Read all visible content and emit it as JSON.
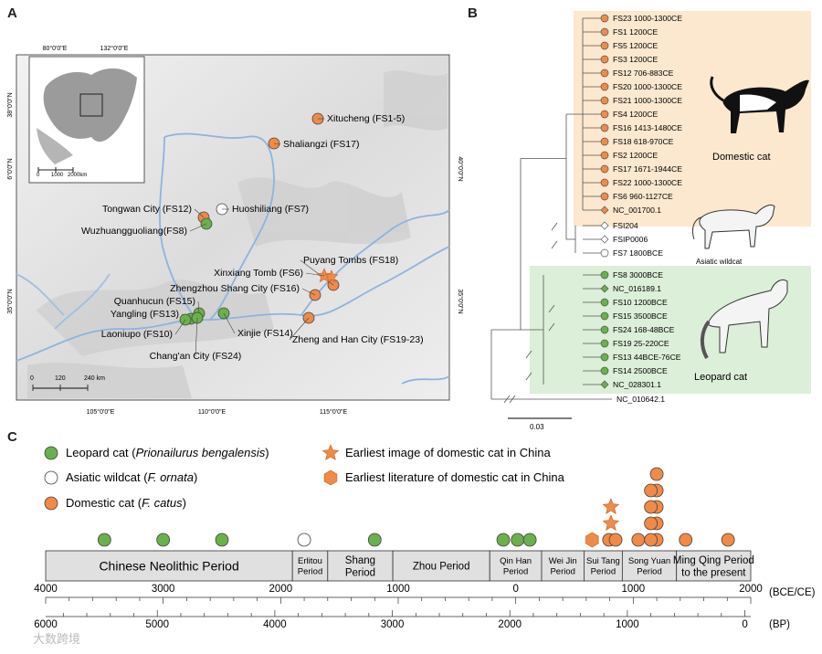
{
  "panel_labels": {
    "a": "A",
    "b": "B",
    "c": "C"
  },
  "colors": {
    "leopard": "#6ab04c",
    "domestic": "#f08a46",
    "wild_fill": "#ffffff",
    "domestic_box": "#fbe8cf",
    "leopard_box": "#dcefd8",
    "river": "#7aa6d6"
  },
  "map": {
    "top_ticks": [
      "80°0'0\"E",
      "132°0'0\"E"
    ],
    "bottom_ticks": [
      "105°0'0\"E",
      "110°0'0\"E",
      "115°0'0\"E"
    ],
    "left_ticks": [
      "38°0'0\"N",
      "6°0'0\"N",
      "35°0'0\"N"
    ],
    "right_ticks": [
      "40°0'0\"N",
      "35°0'0\"N"
    ],
    "inset_scale": [
      "0",
      "1000",
      "2000km"
    ],
    "scale": [
      "0",
      "120",
      "240 km"
    ],
    "sites": [
      {
        "label": "Xitucheng (FS1-5)",
        "type": "domestic"
      },
      {
        "label": "Shaliangzi (FS17)",
        "type": "domestic"
      },
      {
        "label": "Tongwan City (FS12)",
        "type": "domestic"
      },
      {
        "label": "Huoshiliang (FS7)",
        "type": "wild"
      },
      {
        "label": "Wuzhuangguoliang(FS8)",
        "type": "leopard"
      },
      {
        "label": "Puyang Tombs (FS18)",
        "type": "domestic"
      },
      {
        "label": "Xinxiang Tomb (FS6)",
        "type": "image"
      },
      {
        "label": "Zhengzhou Shang City (FS16)",
        "type": "domestic"
      },
      {
        "label": "Quanhucun (FS15)",
        "type": "leopard"
      },
      {
        "label": "Yangling (FS13)",
        "type": "leopard"
      },
      {
        "label": "Laoniupo (FS10)",
        "type": "leopard"
      },
      {
        "label": "Xinjie (FS14)",
        "type": "leopard"
      },
      {
        "label": "Chang'an City (FS24)",
        "type": "leopard"
      },
      {
        "label": "Zheng and Han City (FS19-23)",
        "type": "domestic"
      }
    ]
  },
  "tree": {
    "domestic": [
      {
        "label": "FS23 1000-1300CE",
        "shape": "circle"
      },
      {
        "label": "FS1 1200CE",
        "shape": "circle"
      },
      {
        "label": "FS5 1200CE",
        "shape": "circle"
      },
      {
        "label": "FS3 1200CE",
        "shape": "circle"
      },
      {
        "label": "FS12 706-883CE",
        "shape": "circle"
      },
      {
        "label": "FS20 1000-1300CE",
        "shape": "circle"
      },
      {
        "label": "FS21 1000-1300CE",
        "shape": "circle"
      },
      {
        "label": "FS4 1200CE",
        "shape": "circle"
      },
      {
        "label": "FS16 1413-1480CE",
        "shape": "circle"
      },
      {
        "label": "FS18 618-970CE",
        "shape": "circle"
      },
      {
        "label": "FS2 1200CE",
        "shape": "circle"
      },
      {
        "label": "FS17 1671-1944CE",
        "shape": "circle"
      },
      {
        "label": "FS22 1000-1300CE",
        "shape": "circle"
      },
      {
        "label": "FS6 960-1127CE",
        "shape": "circle"
      },
      {
        "label": "NC_001700.1",
        "shape": "diamond"
      }
    ],
    "wild": [
      {
        "label": "FSI204",
        "shape": "diamond"
      },
      {
        "label": "FSIP0006",
        "shape": "diamond"
      },
      {
        "label": "FS7 1800BCE",
        "shape": "circle"
      }
    ],
    "leopard": [
      {
        "label": "FS8 3000BCE",
        "shape": "circle"
      },
      {
        "label": "NC_016189.1",
        "shape": "diamond"
      },
      {
        "label": "FS10 1200BCE",
        "shape": "circle"
      },
      {
        "label": "FS15 3500BCE",
        "shape": "circle"
      },
      {
        "label": "FS24 168-48BCE",
        "shape": "circle"
      },
      {
        "label": "FS19 25-220CE",
        "shape": "circle"
      },
      {
        "label": "FS13 44BCE-76CE",
        "shape": "circle"
      },
      {
        "label": "FS14 2500BCE",
        "shape": "circle"
      },
      {
        "label": "NC_028301.1",
        "shape": "diamond"
      }
    ],
    "outgroup": "NC_010642.1",
    "scale_bar": "0.03",
    "clade_labels": {
      "domestic": "Domestic cat",
      "wild": "Asiatic wildcat",
      "leopard": "Leopard cat"
    }
  },
  "timeline": {
    "legend": {
      "leopard": {
        "common": "Leopard cat (",
        "latin": "Prionailurus bengalensis",
        "close": ")"
      },
      "wild": {
        "common": "Asiatic wildcat (",
        "latin": "F. ornata",
        "close": ")"
      },
      "domestic": {
        "common": "Domestic cat (",
        "latin": "F. catus",
        "close": ")"
      },
      "image": "Earliest image of domestic cat in China",
      "literature": "Earliest literature of domestic cat in China"
    },
    "periods": [
      {
        "name": "Chinese Neolithic Period",
        "lines": [
          "Chinese Neolithic Period"
        ],
        "start": -4000,
        "end": -1900,
        "big": true
      },
      {
        "name": "Erlitou Period",
        "lines": [
          "Erlitou",
          "Period"
        ],
        "start": -1900,
        "end": -1600
      },
      {
        "name": "Shang Period",
        "lines": [
          "Shang",
          "Period"
        ],
        "start": -1600,
        "end": -1046
      },
      {
        "name": "Zhou Period",
        "lines": [
          "Zhou Period"
        ],
        "start": -1046,
        "end": -221
      },
      {
        "name": "Qin Han Period",
        "lines": [
          "Qin Han",
          "Period"
        ],
        "start": -221,
        "end": 220
      },
      {
        "name": "Wei Jin Period",
        "lines": [
          "Wei Jin",
          "Period"
        ],
        "start": 220,
        "end": 581
      },
      {
        "name": "Sui Tang Period",
        "lines": [
          "Sui Tang",
          "Period"
        ],
        "start": 581,
        "end": 907
      },
      {
        "name": "Song Yuan Period",
        "lines": [
          "Song Yuan",
          "Period"
        ],
        "start": 907,
        "end": 1368
      },
      {
        "name": "Ming Qing Period to the present",
        "lines": [
          "Ming Qing Period",
          "to the present"
        ],
        "start": 1368,
        "end": 2000
      }
    ],
    "axis_top": {
      "ticks": [
        -4000,
        -3000,
        -2000,
        -1000,
        0,
        1000,
        2000
      ],
      "labels": [
        "4000",
        "3000",
        "2000",
        "1000",
        "0",
        "1000",
        "2000"
      ],
      "unit": "(BCE/CE)"
    },
    "axis_bottom": {
      "ticks": [
        6000,
        5000,
        4000,
        3000,
        2000,
        1000,
        0
      ],
      "labels": [
        "6000",
        "5000",
        "4000",
        "3000",
        "2000",
        "1000",
        "0"
      ],
      "unit": "(BP)"
    },
    "events": [
      {
        "type": "leopard",
        "year": -3500
      },
      {
        "type": "leopard",
        "year": -3000
      },
      {
        "type": "leopard",
        "year": -2500
      },
      {
        "type": "wild",
        "year": -1800
      },
      {
        "type": "leopard",
        "year": -1200
      },
      {
        "type": "leopard",
        "year": -106
      },
      {
        "type": "leopard",
        "year": 16
      },
      {
        "type": "leopard",
        "year": 120
      },
      {
        "type": "literature",
        "year": 650
      },
      {
        "type": "domestic",
        "year": 794
      },
      {
        "type": "image",
        "year": 810
      },
      {
        "type": "domestic",
        "year": 850
      },
      {
        "type": "image",
        "year": 810
      },
      {
        "type": "domestic",
        "year": 1043
      },
      {
        "type": "domestic",
        "year": 1200
      },
      {
        "type": "domestic",
        "year": 1200
      },
      {
        "type": "domestic",
        "year": 1200
      },
      {
        "type": "domestic",
        "year": 1200
      },
      {
        "type": "domestic",
        "year": 1200
      },
      {
        "type": "domestic",
        "year": 1150
      },
      {
        "type": "domestic",
        "year": 1150
      },
      {
        "type": "domestic",
        "year": 1150
      },
      {
        "type": "domestic",
        "year": 1150
      },
      {
        "type": "domestic",
        "year": 1446
      },
      {
        "type": "domestic",
        "year": 1807
      }
    ]
  },
  "watermark": "大数跨境"
}
